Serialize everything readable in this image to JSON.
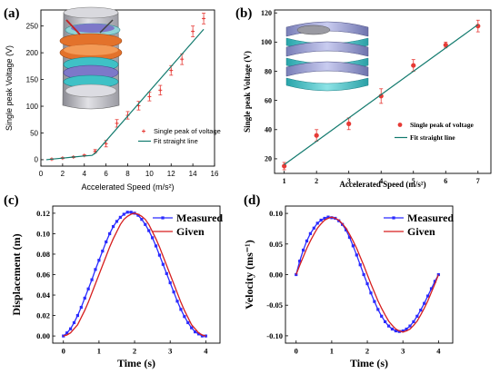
{
  "colors": {
    "axis": "#000000",
    "points_ab": "#e63a35",
    "fit_ab": "#127a6e",
    "measured": "#2b2bff",
    "given": "#d61f1f",
    "device_orange": "#e3722b",
    "device_cyan": "#3fc1c6",
    "device_purple": "#7d78c9",
    "device_grey": "#a6a6ad"
  },
  "icons": {
    "device_a": "cylindrical-layered-device-icon",
    "device_b": "spiral-spring-device-icon"
  },
  "chart_data": [
    {
      "panel": "(a)",
      "type": "scatter",
      "xlabel": "Accelerated Speed (m/s²)",
      "ylabel": "Single peak Voltage (V)",
      "xlim": [
        0,
        16
      ],
      "ylim": [
        -12,
        280
      ],
      "xticks": [
        "0",
        "2",
        "4",
        "6",
        "8",
        "10",
        "12",
        "14",
        "16"
      ],
      "yticks": [
        "0",
        "50",
        "100",
        "150",
        "200",
        "250"
      ],
      "xtick_values": [
        0,
        2,
        4,
        6,
        8,
        10,
        12,
        14,
        16
      ],
      "ytick_values": [
        0,
        50,
        100,
        150,
        200,
        250
      ],
      "legend": [
        "Single peak of voltage",
        "Fit straight line"
      ],
      "legend_position": "bottom-right",
      "series": [
        {
          "name": "Single peak of voltage",
          "style": "points-with-errorbars",
          "points": [
            {
              "x": 1,
              "y": 1,
              "err": 1
            },
            {
              "x": 2,
              "y": 3,
              "err": 1
            },
            {
              "x": 3,
              "y": 5,
              "err": 1
            },
            {
              "x": 4,
              "y": 8,
              "err": 1
            },
            {
              "x": 5,
              "y": 16,
              "err": 3
            },
            {
              "x": 6,
              "y": 30,
              "err": 6
            },
            {
              "x": 7,
              "y": 68,
              "err": 7
            },
            {
              "x": 8,
              "y": 83,
              "err": 7
            },
            {
              "x": 9,
              "y": 101,
              "err": 8
            },
            {
              "x": 10,
              "y": 118,
              "err": 8
            },
            {
              "x": 11,
              "y": 130,
              "err": 9
            },
            {
              "x": 12,
              "y": 167,
              "err": 9
            },
            {
              "x": 13,
              "y": 188,
              "err": 10
            },
            {
              "x": 14,
              "y": 240,
              "err": 10
            },
            {
              "x": 15,
              "y": 264,
              "err": 10
            }
          ]
        },
        {
          "name": "Fit straight line",
          "style": "line",
          "x": [
            0.5,
            1,
            2,
            3,
            4,
            4.7,
            5,
            15
          ],
          "y": [
            0,
            1,
            3,
            5,
            7,
            8,
            12,
            244
          ]
        }
      ]
    },
    {
      "panel": "(b)",
      "type": "scatter",
      "xlabel": "Accelerated Speed (m/s²)",
      "ylabel": "Single peak Voltage (V)",
      "xlim": [
        0.7,
        7.4
      ],
      "ylim": [
        10,
        122
      ],
      "xticks": [
        "1",
        "2",
        "3",
        "4",
        "5",
        "6",
        "7"
      ],
      "yticks": [
        "20",
        "40",
        "60",
        "80",
        "100",
        "120"
      ],
      "xtick_values": [
        1,
        2,
        3,
        4,
        5,
        6,
        7
      ],
      "ytick_values": [
        20,
        40,
        60,
        80,
        100,
        120
      ],
      "legend": [
        "Single peak of voltage",
        "Fit straight line"
      ],
      "legend_position": "bottom-right",
      "series": [
        {
          "name": "Single peak of voltage",
          "style": "points-with-errorbars",
          "points": [
            {
              "x": 1,
              "y": 15,
              "err": 2.5
            },
            {
              "x": 2,
              "y": 36,
              "err": 4
            },
            {
              "x": 3,
              "y": 44,
              "err": 4
            },
            {
              "x": 4,
              "y": 63,
              "err": 5
            },
            {
              "x": 5,
              "y": 84,
              "err": 4
            },
            {
              "x": 6,
              "y": 98,
              "err": 2
            },
            {
              "x": 7,
              "y": 111,
              "err": 4
            }
          ]
        },
        {
          "name": "Fit straight line",
          "style": "line",
          "x": [
            1,
            7
          ],
          "y": [
            16,
            112
          ]
        }
      ]
    },
    {
      "panel": "(c)",
      "type": "line",
      "xlabel": "Time (s)",
      "ylabel": "Displacement (m)",
      "xlim": [
        -0.3,
        4.4
      ],
      "ylim": [
        -0.007,
        0.127
      ],
      "xticks": [
        "0",
        "1",
        "2",
        "3",
        "4"
      ],
      "yticks": [
        "0.00",
        "0.02",
        "0.04",
        "0.06",
        "0.08",
        "0.10",
        "0.12"
      ],
      "xtick_values": [
        0,
        1,
        2,
        3,
        4
      ],
      "ytick_values": [
        0,
        0.02,
        0.04,
        0.06,
        0.08,
        0.1,
        0.12
      ],
      "legend": [
        "Measured",
        "Given"
      ],
      "legend_position": "top-right",
      "series": [
        {
          "name": "Measured",
          "style": "line-with-square-markers",
          "x": [
            0,
            0.1,
            0.2,
            0.3,
            0.4,
            0.5,
            0.6,
            0.7,
            0.8,
            0.9,
            1.0,
            1.1,
            1.2,
            1.3,
            1.4,
            1.5,
            1.6,
            1.7,
            1.8,
            1.9,
            2.0,
            2.1,
            2.2,
            2.3,
            2.4,
            2.5,
            2.6,
            2.7,
            2.8,
            2.9,
            3.0,
            3.1,
            3.2,
            3.3,
            3.4,
            3.5,
            3.6,
            3.7,
            3.8,
            3.9,
            4.0
          ],
          "y": [
            0.0,
            0.003,
            0.007,
            0.013,
            0.02,
            0.028,
            0.037,
            0.046,
            0.055,
            0.065,
            0.074,
            0.083,
            0.092,
            0.1,
            0.107,
            0.112,
            0.116,
            0.119,
            0.121,
            0.121,
            0.12,
            0.118,
            0.114,
            0.109,
            0.103,
            0.096,
            0.088,
            0.079,
            0.07,
            0.061,
            0.052,
            0.043,
            0.034,
            0.026,
            0.019,
            0.013,
            0.008,
            0.004,
            0.002,
            0.0,
            0.0
          ]
        },
        {
          "name": "Given",
          "style": "line",
          "x": [
            0,
            0.1,
            0.2,
            0.3,
            0.4,
            0.5,
            0.6,
            0.7,
            0.8,
            0.9,
            1.0,
            1.1,
            1.2,
            1.3,
            1.4,
            1.5,
            1.6,
            1.7,
            1.8,
            1.9,
            2.0,
            2.1,
            2.2,
            2.3,
            2.4,
            2.5,
            2.6,
            2.7,
            2.8,
            2.9,
            3.0,
            3.1,
            3.2,
            3.3,
            3.4,
            3.5,
            3.6,
            3.7,
            3.8,
            3.9,
            4.0
          ],
          "y": [
            0.0,
            0.001,
            0.003,
            0.007,
            0.011,
            0.018,
            0.025,
            0.033,
            0.042,
            0.051,
            0.06,
            0.069,
            0.078,
            0.087,
            0.095,
            0.102,
            0.109,
            0.114,
            0.117,
            0.119,
            0.12,
            0.119,
            0.117,
            0.114,
            0.109,
            0.102,
            0.095,
            0.087,
            0.078,
            0.069,
            0.06,
            0.051,
            0.042,
            0.033,
            0.025,
            0.018,
            0.011,
            0.007,
            0.003,
            0.001,
            0.0
          ]
        }
      ]
    },
    {
      "panel": "(d)",
      "type": "line",
      "xlabel": "Time (s)",
      "ylabel": "Velocity (ms⁻¹)",
      "xlim": [
        -0.3,
        4.4
      ],
      "ylim": [
        -0.112,
        0.112
      ],
      "xticks": [
        "0",
        "1",
        "2",
        "3",
        "4"
      ],
      "yticks": [
        "-0.10",
        "-0.05",
        "0.00",
        "0.05",
        "0.10"
      ],
      "xtick_values": [
        0,
        1,
        2,
        3,
        4
      ],
      "ytick_values": [
        -0.1,
        -0.05,
        0.0,
        0.05,
        0.1
      ],
      "legend": [
        "Measured",
        "Given"
      ],
      "legend_position": "top-right",
      "series": [
        {
          "name": "Measured",
          "style": "line-with-square-markers",
          "x": [
            0,
            0.1,
            0.2,
            0.3,
            0.4,
            0.5,
            0.6,
            0.7,
            0.8,
            0.9,
            1.0,
            1.1,
            1.2,
            1.3,
            1.4,
            1.5,
            1.6,
            1.7,
            1.8,
            1.9,
            2.0,
            2.1,
            2.2,
            2.3,
            2.4,
            2.5,
            2.6,
            2.7,
            2.8,
            2.9,
            3.0,
            3.1,
            3.2,
            3.3,
            3.4,
            3.5,
            3.6,
            3.7,
            3.8,
            3.9,
            4.0
          ],
          "y": [
            0.0,
            0.022,
            0.04,
            0.055,
            0.067,
            0.076,
            0.084,
            0.089,
            0.092,
            0.094,
            0.093,
            0.092,
            0.088,
            0.082,
            0.073,
            0.061,
            0.047,
            0.032,
            0.016,
            0.0,
            -0.015,
            -0.03,
            -0.044,
            -0.057,
            -0.068,
            -0.077,
            -0.084,
            -0.089,
            -0.092,
            -0.093,
            -0.092,
            -0.089,
            -0.084,
            -0.077,
            -0.068,
            -0.058,
            -0.047,
            -0.035,
            -0.023,
            -0.011,
            0.0
          ]
        },
        {
          "name": "Given",
          "style": "line",
          "x": [
            0,
            0.1,
            0.2,
            0.3,
            0.4,
            0.5,
            0.6,
            0.7,
            0.8,
            0.9,
            1.0,
            1.1,
            1.2,
            1.3,
            1.4,
            1.5,
            1.6,
            1.7,
            1.8,
            1.9,
            2.0,
            2.1,
            2.2,
            2.3,
            2.4,
            2.5,
            2.6,
            2.7,
            2.8,
            2.9,
            3.0,
            3.1,
            3.2,
            3.3,
            3.4,
            3.5,
            3.6,
            3.7,
            3.8,
            3.9,
            4.0
          ],
          "y": [
            0.0,
            0.015,
            0.029,
            0.043,
            0.055,
            0.066,
            0.076,
            0.083,
            0.089,
            0.092,
            0.094,
            0.092,
            0.089,
            0.083,
            0.076,
            0.066,
            0.055,
            0.043,
            0.029,
            0.015,
            0.0,
            -0.015,
            -0.029,
            -0.043,
            -0.055,
            -0.066,
            -0.076,
            -0.083,
            -0.089,
            -0.092,
            -0.094,
            -0.092,
            -0.089,
            -0.083,
            -0.076,
            -0.066,
            -0.055,
            -0.043,
            -0.029,
            -0.015,
            0.0
          ]
        }
      ]
    }
  ]
}
